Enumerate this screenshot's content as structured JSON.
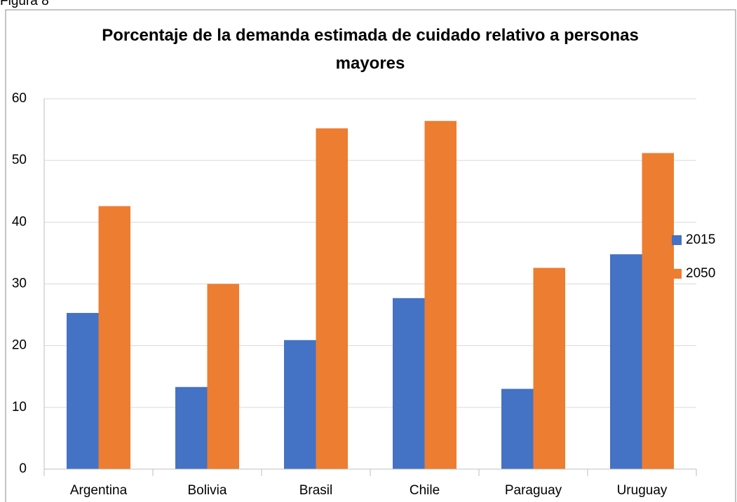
{
  "caption": "Figura 8",
  "chart_data": {
    "type": "bar",
    "title": "Porcentaje de la demanda estimada de cuidado relativo a personas mayores",
    "categories": [
      "Argentina",
      "Bolivia",
      "Brasil",
      "Chile",
      "Paraguay",
      "Uruguay"
    ],
    "series": [
      {
        "name": "2015",
        "color": "#4472c4",
        "values": [
          25.3,
          13.3,
          20.9,
          27.7,
          13.0,
          34.8
        ]
      },
      {
        "name": "2050",
        "color": "#ed7d31",
        "values": [
          42.6,
          30.0,
          55.2,
          56.4,
          32.6,
          51.2
        ]
      }
    ],
    "ylim": [
      0,
      60
    ],
    "yticks": [
      0,
      10,
      20,
      30,
      40,
      50,
      60
    ],
    "grid": true,
    "legend": "right"
  }
}
